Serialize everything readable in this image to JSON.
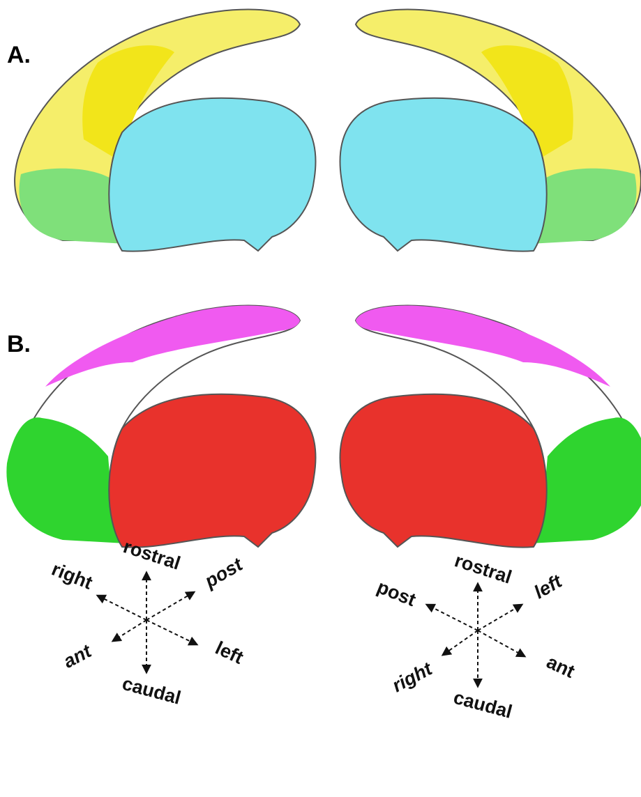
{
  "panels": [
    {
      "label": "A."
    },
    {
      "label": "B."
    }
  ],
  "compasses": [
    {
      "up": "rostral",
      "down": "caudal",
      "upper_left": "right",
      "upper_right": "post",
      "lower_left": "ant",
      "lower_right": "left"
    },
    {
      "up": "rostral",
      "down": "caudal",
      "upper_left": "post",
      "upper_right": "left",
      "lower_left": "right",
      "lower_right": "ant"
    }
  ]
}
